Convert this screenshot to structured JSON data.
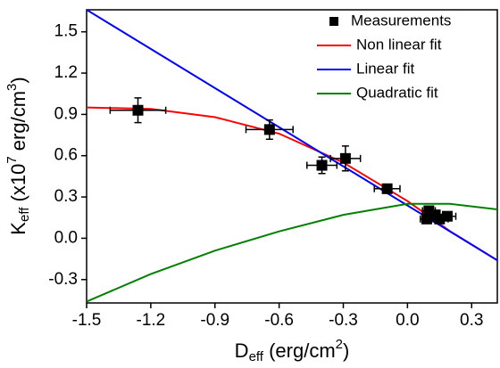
{
  "chart_data": {
    "type": "scatter",
    "xlabel_parts": [
      "D",
      "eff",
      " (erg/cm",
      "2",
      ")"
    ],
    "ylabel_parts": [
      "K",
      "eff",
      " (x10",
      "7",
      " erg/cm",
      "3",
      ")"
    ],
    "xlim": [
      -1.5,
      0.42
    ],
    "ylim": [
      -0.47,
      1.66
    ],
    "xticks": [
      -1.5,
      -1.2,
      -0.9,
      -0.6,
      -0.3,
      {
        "value": 0,
        "label": "0.0"
      },
      0.3
    ],
    "yticks": [
      -0.3,
      {
        "value": 0,
        "label": "0.0"
      },
      0.3,
      0.6,
      0.9,
      1.2,
      1.5
    ],
    "legend": "upper right",
    "points": {
      "name": "Measurements",
      "color": "#000000",
      "x": [
        -1.26,
        -0.645,
        -0.4,
        -0.29,
        -0.095,
        0.1,
        0.09,
        0.13,
        0.15,
        0.186
      ],
      "values": [
        0.93,
        0.79,
        0.53,
        0.58,
        0.36,
        0.2,
        0.14,
        0.17,
        0.14,
        0.16
      ],
      "xerr": [
        0.13,
        0.11,
        0.07,
        0.07,
        0.06,
        0.03,
        0.03,
        0.05,
        0.04,
        0.04
      ],
      "yerr": [
        0.09,
        0.07,
        0.06,
        0.09,
        0.03,
        0.03,
        0.03,
        0.03,
        0.03,
        0.03
      ]
    },
    "series": [
      {
        "name": "Non linear fit",
        "color": "#ff0000",
        "x": [
          -1.5,
          -1.2,
          -0.9,
          -0.6,
          -0.3,
          0,
          0.2,
          0.42
        ],
        "values": [
          0.95,
          0.94,
          0.88,
          0.76,
          0.55,
          0.27,
          0.05,
          -0.16
        ]
      },
      {
        "name": "Linear fit",
        "color": "#0000ff",
        "x": [
          -1.5,
          0.42
        ],
        "values": [
          1.66,
          -0.16
        ]
      },
      {
        "name": "Quadratic fit",
        "color": "#008000",
        "x": [
          -1.5,
          -1.2,
          -0.9,
          -0.6,
          -0.3,
          0,
          0.2,
          0.42
        ],
        "values": [
          -0.46,
          -0.26,
          -0.09,
          0.05,
          0.17,
          0.25,
          0.25,
          0.21
        ]
      }
    ]
  }
}
